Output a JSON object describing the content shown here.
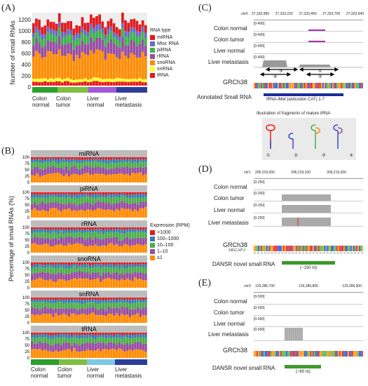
{
  "panels": {
    "a": "(A)",
    "b": "(B)",
    "c": "(C)",
    "d": "(D)",
    "e": "(E)"
  },
  "panel_a": {
    "ylabel": "Number of small RNAs",
    "yticks": [
      "0",
      "200",
      "400",
      "600",
      "800",
      "1000",
      "1200"
    ],
    "legend_title": "RNA type",
    "legend": [
      {
        "label": "miRNA",
        "color": "#e41a1c"
      },
      {
        "label": "Misc RNA",
        "color": "#6a6ac8"
      },
      {
        "label": "piRNA",
        "color": "#3cb44b"
      },
      {
        "label": "rRNA",
        "color": "#984ea3"
      },
      {
        "label": "snoRNA",
        "color": "#ff8c00"
      },
      {
        "label": "snRNA",
        "color": "#ffff33"
      },
      {
        "label": "tRNA",
        "color": "#e41a1c"
      }
    ],
    "groups": [
      {
        "line1": "Colon",
        "line2": "normal"
      },
      {
        "line1": "Colon",
        "line2": "tumor"
      },
      {
        "line1": "Liver",
        "line2": "normal"
      },
      {
        "line1": "Liver",
        "line2": "metastasis"
      }
    ]
  },
  "panel_b": {
    "ylabel": "Percentage of small RNAs (%)",
    "yticks": [
      "0",
      "25",
      "50",
      "75",
      "100"
    ],
    "facets": [
      "miRNA",
      "piRNA",
      "rRNA",
      "snoRNA",
      "snRNA",
      "tRNA"
    ],
    "legend_title": "Expression (RPM)",
    "legend": [
      {
        "label": ">1000",
        "color": "#e41a1c"
      },
      {
        "label": "100–1000",
        "color": "#377eb8"
      },
      {
        "label": "10–100",
        "color": "#4daf4a"
      },
      {
        "label": "1–10",
        "color": "#984ea3"
      },
      {
        "label": "≤1",
        "color": "#ff8c00"
      }
    ],
    "groups": [
      {
        "line1": "Colon",
        "line2": "normal"
      },
      {
        "line1": "Colon",
        "line2": "tumor"
      },
      {
        "line1": "Liver",
        "line2": "normal"
      },
      {
        "line1": "Liver",
        "line2": "metastasis"
      }
    ]
  },
  "panel_c": {
    "chrom": "chr6",
    "coords": [
      "27,332,980",
      "27,333,220",
      "27,333,460",
      "27,333,700",
      "27,333,940"
    ],
    "tracks": [
      {
        "label": "Colon normal",
        "range": "[0-400]"
      },
      {
        "label": "Colon tumor",
        "range": "[0-400]"
      },
      {
        "label": "Liver normal",
        "range": "[0-400]"
      },
      {
        "label": "Liver metastasis",
        "range": "[0-400]"
      }
    ],
    "genome": "GRCh38",
    "annot_label": "Annotated Small RNA",
    "annot_name": "tRNA-iMet (anticodon CAT) 1-7",
    "illus_title": "Illustration of fragments of mature tRNA",
    "frag_nums": [
      "①",
      "②",
      "③",
      "④"
    ]
  },
  "panel_d": {
    "chrom": "chr1",
    "coords": [
      "206,219,000",
      "206,219,100",
      "206,219,200"
    ],
    "tracks": [
      {
        "label": "Colon normal",
        "range": "[0-250]"
      },
      {
        "label": "Colon tumor",
        "range": "[0-250]"
      },
      {
        "label": "Liver normal",
        "range": "[0-250]"
      },
      {
        "label": "Liver metastasis",
        "range": "[0-250]"
      }
    ],
    "genome": "GRCh38",
    "gene": "SRGAP2",
    "novel_label": "DANSR novel small RNA",
    "novel_len": "(~150 nt)"
  },
  "panel_e": {
    "chrom": "chr9",
    "coords": [
      "129,286,700",
      "129,286,800",
      "129,286,900"
    ],
    "tracks": [
      {
        "label": "Colon normal",
        "range": "[0-500]"
      },
      {
        "label": "Colon tumor",
        "range": "[0-500]"
      },
      {
        "label": "Liver normal",
        "range": "[0-500]"
      },
      {
        "label": "Liver metastasis",
        "range": "[0-500]"
      }
    ],
    "genome": "GRCh38",
    "novel_label": "DANSR novel small RNA",
    "novel_len": "(~60 nt)"
  }
}
